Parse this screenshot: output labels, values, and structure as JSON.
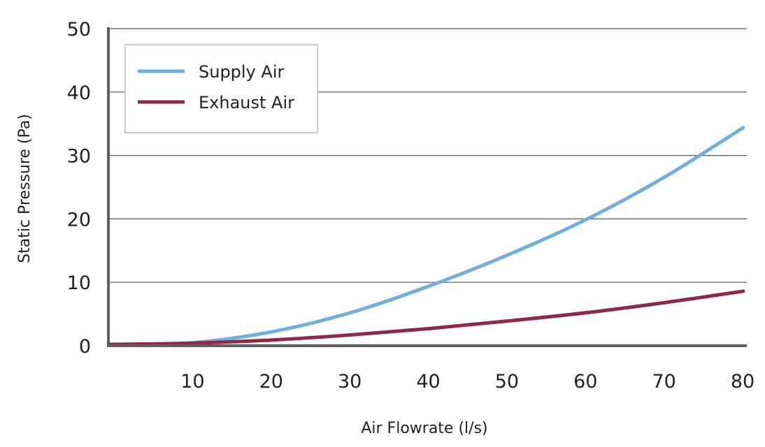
{
  "chart_data": {
    "type": "line",
    "title": "",
    "xlabel": "Air Flowrate (l/s)",
    "ylabel": "Static Pressure (Pa)",
    "xlim": [
      0,
      80
    ],
    "ylim": [
      0,
      50
    ],
    "x_ticks": [
      10,
      20,
      30,
      40,
      50,
      60,
      70,
      80
    ],
    "y_ticks": [
      0,
      10,
      20,
      30,
      40,
      50
    ],
    "grid": "horizontal",
    "legend_position": "top-left",
    "x": [
      0,
      10,
      20,
      30,
      40,
      50,
      60,
      70,
      80
    ],
    "series": [
      {
        "name": "Supply Air",
        "color": "#6fafdb",
        "values": [
          0.2,
          0.5,
          2.2,
          5.2,
          9.4,
          14.3,
          19.9,
          26.6,
          34.4
        ]
      },
      {
        "name": "Exhaust Air",
        "color": "#8e2a45",
        "values": [
          0.2,
          0.4,
          0.9,
          1.7,
          2.7,
          3.9,
          5.2,
          6.8,
          8.6
        ]
      }
    ]
  }
}
